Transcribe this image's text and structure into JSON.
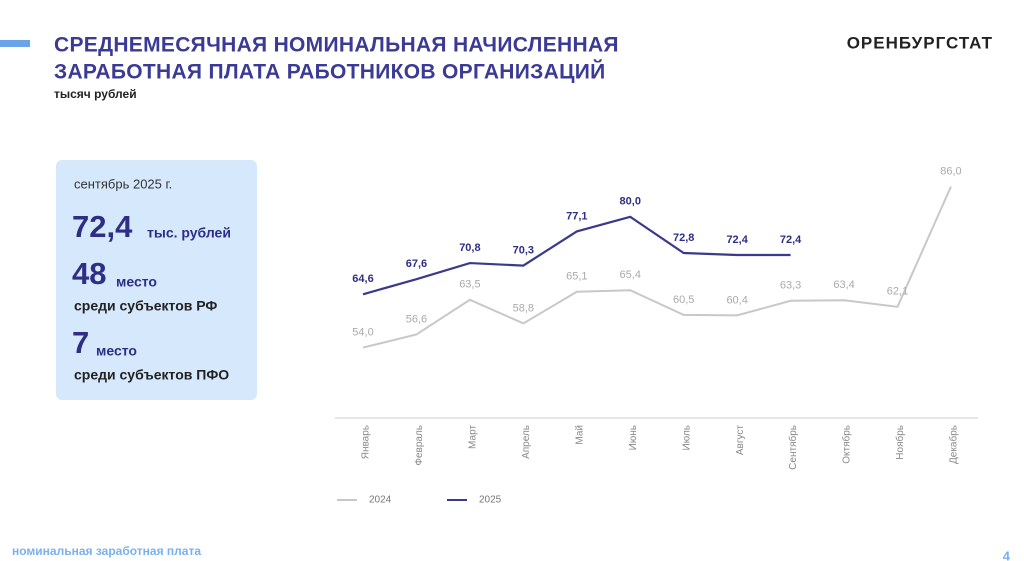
{
  "header": {
    "title_lines": [
      "СРЕДНЕМЕСЯЧНАЯ НОМИНАЛЬНАЯ НАЧИСЛЕННАЯ",
      "ЗАРАБОТНАЯ ПЛАТА РАБОТНИКОВ ОРГАНИЗАЦИЙ"
    ],
    "subtitle": "тысяч рублей",
    "brand": "ОРЕНБУРГСТАТ"
  },
  "info": {
    "period": "сентябрь 2025 г.",
    "value": "72,4",
    "value_unit": "тыс. рублей",
    "rank_rf": "48",
    "rank_rf_word": "место",
    "rank_rf_text": "среди субъектов РФ",
    "rank_pfo": "7",
    "rank_pfo_word": "место",
    "rank_pfo_text": "среди субъектов ПФО"
  },
  "chart_data": {
    "type": "line",
    "categories": [
      "Январь",
      "Февраль",
      "Март",
      "Апрель",
      "Май",
      "Июнь",
      "Июль",
      "Август",
      "Сентябрь",
      "Октябрь",
      "Ноябрь",
      "Декабрь"
    ],
    "series": [
      {
        "name": "2024",
        "color": "#c8c8c8",
        "values": [
          54.0,
          56.6,
          63.5,
          58.8,
          65.1,
          65.4,
          60.5,
          60.4,
          63.3,
          63.4,
          62.1,
          86.0
        ],
        "value_labels": [
          "54,0",
          "56,6",
          "63,5",
          "58,8",
          "65,1",
          "65,4",
          "60,5",
          "60,4",
          "63,3",
          "63,4",
          "62,1",
          "86,0"
        ]
      },
      {
        "name": "2025",
        "color": "#3a3a8c",
        "values": [
          64.6,
          67.6,
          70.8,
          70.3,
          77.1,
          80.0,
          72.8,
          72.4,
          72.4,
          null,
          null,
          null
        ],
        "value_labels": [
          "64,6",
          "67,6",
          "70,8",
          "70,3",
          "77,1",
          "80,0",
          "72,8",
          "72,4",
          "72,4",
          null,
          null,
          null
        ]
      }
    ],
    "ylim": [
      40,
      90
    ],
    "legend": "bottom"
  },
  "footer": {
    "text": "номинальная заработная плата",
    "page": "4"
  }
}
